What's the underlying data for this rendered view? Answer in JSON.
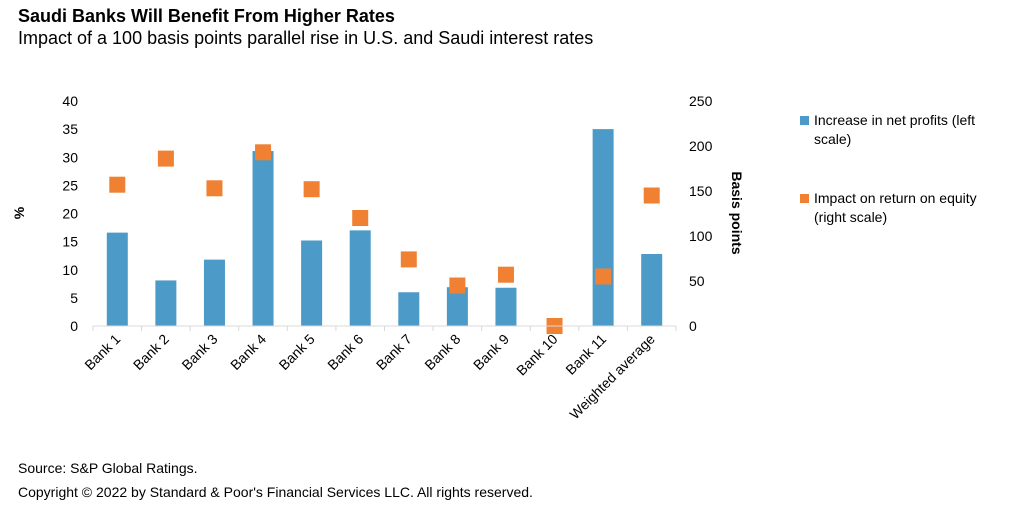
{
  "title": "Saudi Banks Will Benefit From Higher Rates",
  "subtitle": "Impact of a 100 basis points parallel rise in U.S. and Saudi interest rates",
  "footer": {
    "source": "Source: S&P Global Ratings.",
    "copyright": "Copyright © 2022 by Standard & Poor's Financial Services LLC. All rights reserved."
  },
  "colors": {
    "bar": "#4c9ac7",
    "marker": "#f08132",
    "axis": "#d9d9d9",
    "text": "#000000"
  },
  "chart_data": {
    "type": "bar",
    "categories": [
      "Bank 1",
      "Bank 2",
      "Bank 3",
      "Bank 4",
      "Bank 5",
      "Bank 6",
      "Bank 7",
      "Bank 8",
      "Bank 9",
      "Bank 10",
      "Bank 11",
      "Weighted average"
    ],
    "series": [
      {
        "name": "Increase in net profits (left scale)",
        "type": "bar",
        "axis": "left",
        "values": [
          16.6,
          8.1,
          11.8,
          31.1,
          15.2,
          17.0,
          6.0,
          6.9,
          6.8,
          0,
          35.0,
          12.8
        ]
      },
      {
        "name": "Impact on return on equity (right scale)",
        "type": "scatter",
        "axis": "right",
        "marker": "square",
        "values": [
          157,
          186,
          153,
          193,
          152,
          120,
          74,
          45,
          57,
          0,
          55,
          145
        ]
      }
    ],
    "ylabel": "%",
    "y2label": "Basis points",
    "ylim": [
      0,
      40
    ],
    "yticks": [
      0,
      5,
      10,
      15,
      20,
      25,
      30,
      35,
      40
    ],
    "y2lim": [
      0,
      250
    ],
    "y2ticks": [
      0,
      50,
      100,
      150,
      200,
      250
    ],
    "grid": false,
    "legend_position": "right"
  }
}
